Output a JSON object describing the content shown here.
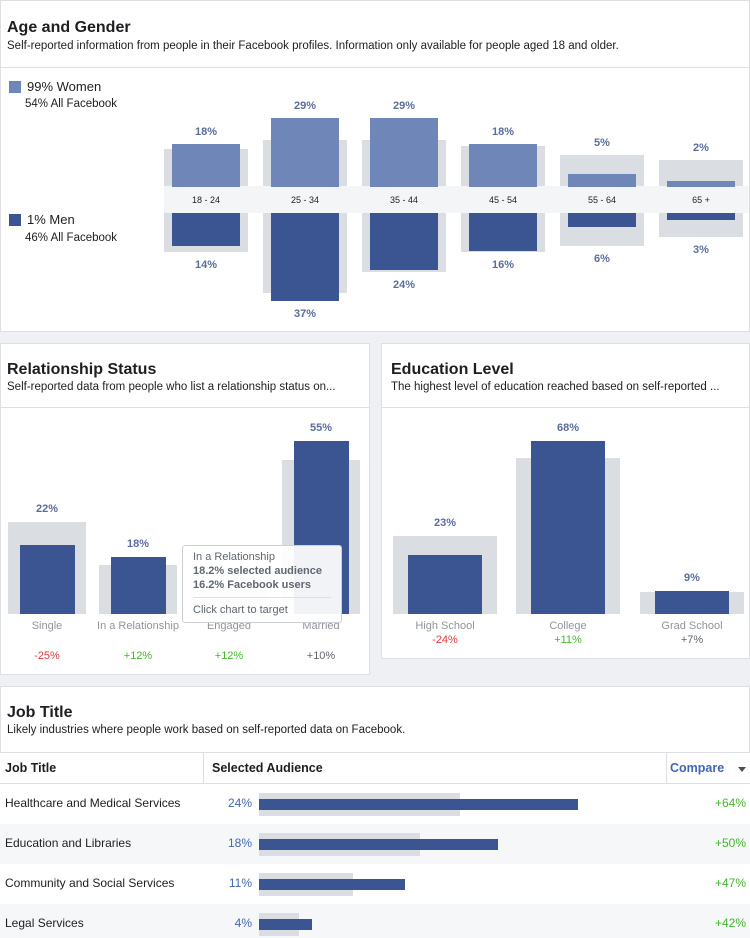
{
  "colors": {
    "women": "#6f86b8",
    "men": "#3b5592",
    "shadow": "#dadde1",
    "accent": "#4267b2",
    "negative": "#e0393e",
    "positive": "#42b72a"
  },
  "age_gender": {
    "title": "Age and Gender",
    "subtitle": "Self-reported information from people in their Facebook profiles. Information only available for people aged 18 and older.",
    "women": {
      "label": "99% Women",
      "sub": "54% All Facebook"
    },
    "men": {
      "label": "1% Men",
      "sub": "46% All Facebook"
    },
    "groups": [
      {
        "range": "18 - 24",
        "women": "18%",
        "men": "14%",
        "women_val": 18,
        "men_val": 14
      },
      {
        "range": "25 - 34",
        "women": "29%",
        "men": "37%",
        "women_val": 29,
        "men_val": 37
      },
      {
        "range": "35 - 44",
        "women": "29%",
        "men": "24%",
        "women_val": 29,
        "men_val": 24
      },
      {
        "range": "45 - 54",
        "women": "18%",
        "men": "16%",
        "women_val": 18,
        "men_val": 16
      },
      {
        "range": "55 - 64",
        "women": "5%",
        "men": "6%",
        "women_val": 5,
        "men_val": 6
      },
      {
        "range": "65 +",
        "women": "2%",
        "men": "3%",
        "women_val": 2,
        "men_val": 3
      }
    ]
  },
  "relationship": {
    "title": "Relationship Status",
    "subtitle": "Self-reported data from people who list a relationship status on...",
    "bars": [
      {
        "label": "Single",
        "value": "22%",
        "change": "-25%"
      },
      {
        "label": "In a Relationship",
        "value": "18%",
        "change": "+12%"
      },
      {
        "label": "Engaged",
        "value": "",
        "change": "+12%"
      },
      {
        "label": "Married",
        "value": "55%",
        "change": "+10%"
      }
    ],
    "tooltip": {
      "title": "In a Relationship",
      "selected": "18.2% selected audience",
      "facebook": "16.2% Facebook users",
      "action": "Click chart to target"
    }
  },
  "education": {
    "title": "Education Level",
    "subtitle": "The highest level of education reached based on self-reported ...",
    "bars": [
      {
        "label": "High School",
        "value": "23%",
        "change": "-24%"
      },
      {
        "label": "College",
        "value": "68%",
        "change": "+11%"
      },
      {
        "label": "Grad School",
        "value": "9%",
        "change": "+7%"
      }
    ]
  },
  "job_title": {
    "title": "Job Title",
    "subtitle": "Likely industries where people work based on self-reported data on Facebook.",
    "columns": {
      "job": "Job Title",
      "audience": "Selected Audience",
      "compare": "Compare"
    },
    "rows": [
      {
        "title": "Healthcare and Medical Services",
        "pct": "24%",
        "compare": "+64%",
        "selected": 24,
        "facebook": 15
      },
      {
        "title": "Education and Libraries",
        "pct": "18%",
        "compare": "+50%",
        "selected": 18,
        "facebook": 12
      },
      {
        "title": "Community and Social Services",
        "pct": "11%",
        "compare": "+47%",
        "selected": 11,
        "facebook": 7
      },
      {
        "title": "Legal Services",
        "pct": "4%",
        "compare": "+42%",
        "selected": 4,
        "facebook": 3
      }
    ]
  }
}
